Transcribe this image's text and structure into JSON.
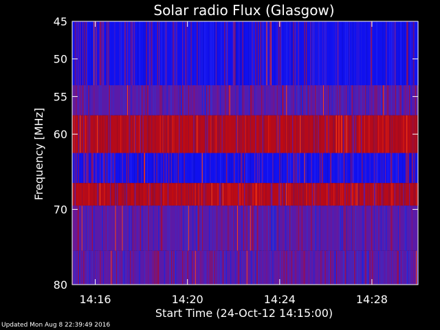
{
  "chart_data": {
    "type": "heatmap",
    "title": "Solar radio Flux (Glasgow)",
    "xlabel": "Start Time (24-Oct-12 14:15:00)",
    "ylabel": "Frequency [MHz]",
    "xlim": [
      "14:15:00",
      "14:30:00"
    ],
    "ylim": [
      45,
      80
    ],
    "y_inverted": true,
    "x_ticks": [
      "14:16",
      "14:20",
      "14:24",
      "14:28"
    ],
    "y_ticks": [
      45,
      50,
      55,
      60,
      70,
      80
    ],
    "colors": {
      "low": "#1010ee",
      "mid": "#5a1aa8",
      "high": "#b50a1a",
      "peak": "#ff4010"
    },
    "bands": [
      {
        "freq_start": 45,
        "freq_end": 53.5,
        "base_level": "low"
      },
      {
        "freq_start": 53.5,
        "freq_end": 57.5,
        "base_level": "mid"
      },
      {
        "freq_start": 57.5,
        "freq_end": 62.5,
        "base_level": "high"
      },
      {
        "freq_start": 62.5,
        "freq_end": 66.5,
        "base_level": "low"
      },
      {
        "freq_start": 66.5,
        "freq_end": 69.5,
        "base_level": "high"
      },
      {
        "freq_start": 69.5,
        "freq_end": 75.5,
        "base_level": "mid"
      },
      {
        "freq_start": 75.5,
        "freq_end": 80,
        "base_level": "mid"
      }
    ]
  },
  "footer": {
    "updated": "Updated Mon Aug  8 22:39:49 2016"
  }
}
